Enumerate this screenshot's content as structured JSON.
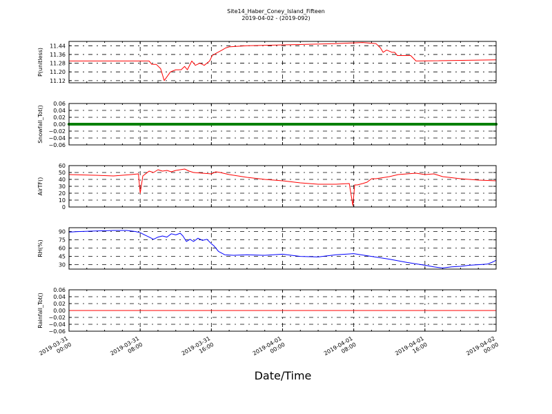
{
  "chart_data": {
    "type": "line",
    "title": "Site14_Haber_Coney_Island_Fifteen",
    "subtitle": "2019-04-02 - (2019-092)",
    "xlabel": "Date/Time",
    "x_tick_labels": [
      [
        "2019-03-31",
        "00:00"
      ],
      [
        "2019-03-31",
        "08:00"
      ],
      [
        "2019-03-31",
        "16:00"
      ],
      [
        "2019-04-01",
        "00:00"
      ],
      [
        "2019-04-01",
        "08:00"
      ],
      [
        "2019-04-01",
        "16:00"
      ],
      [
        "2019-04-02",
        "00:00"
      ]
    ],
    "xlim_hours": [
      0,
      48
    ],
    "grid": true,
    "panels": [
      {
        "ylabel": "P(unitless)",
        "color": "#ff0000",
        "ylim": [
          11.1,
          11.48
        ],
        "yticks": [
          11.12,
          11.2,
          11.28,
          11.36,
          11.44
        ],
        "ytick_labels": [
          "11.12",
          "11.20",
          "11.28",
          "11.36",
          "11.44"
        ],
        "x": [
          0,
          9,
          9.3,
          9.8,
          10.3,
          10.7,
          11.4,
          12,
          12.3,
          12.6,
          13,
          13.3,
          13.8,
          14.2,
          14.7,
          15.2,
          15.8,
          16.1,
          16.5,
          17.2,
          17.6,
          18,
          20,
          25,
          30,
          33,
          34.5,
          35,
          35.3,
          35.7,
          36.3,
          36.6,
          36.9,
          37.6,
          38,
          38.4,
          39,
          48
        ],
        "y": [
          11.3,
          11.3,
          11.27,
          11.27,
          11.23,
          11.12,
          11.2,
          11.22,
          11.22,
          11.22,
          11.25,
          11.22,
          11.3,
          11.26,
          11.28,
          11.26,
          11.3,
          11.35,
          11.37,
          11.4,
          11.42,
          11.43,
          11.44,
          11.45,
          11.46,
          11.47,
          11.46,
          11.42,
          11.38,
          11.4,
          11.38,
          11.38,
          11.35,
          11.35,
          11.35,
          11.35,
          11.3,
          11.31
        ]
      },
      {
        "ylabel": "Snowfall_Tot()",
        "color": "#008000",
        "marker": "dot",
        "ylim": [
          -0.06,
          0.06
        ],
        "yticks": [
          -0.06,
          -0.04,
          -0.02,
          0.0,
          0.02,
          0.04,
          0.06
        ],
        "ytick_labels": [
          "−0.06",
          "−0.04",
          "−0.02",
          "0.00",
          "0.02",
          "0.04",
          "0.06"
        ],
        "x": [
          0,
          48
        ],
        "y": [
          0,
          0
        ]
      },
      {
        "ylabel": "AirTF()",
        "color": "#ff0000",
        "ylim": [
          0,
          60
        ],
        "yticks": [
          0,
          10,
          20,
          30,
          40,
          50,
          60
        ],
        "ytick_labels": [
          "0",
          "10",
          "20",
          "30",
          "40",
          "50",
          "60"
        ],
        "x": [
          0,
          3,
          5,
          7,
          7.8,
          8,
          8.3,
          9,
          9.5,
          10,
          10.5,
          11,
          11.5,
          12,
          12.5,
          13,
          13.5,
          14,
          15,
          16,
          16.5,
          17,
          18,
          20,
          22,
          24,
          26,
          28,
          30,
          31.5,
          31.9,
          32.1,
          32.4,
          33,
          33.5,
          34,
          34.5,
          35,
          36,
          37,
          38,
          39,
          40,
          41,
          41.5,
          42,
          44,
          46,
          48
        ],
        "y": [
          47,
          46,
          45,
          47,
          48,
          20,
          45,
          52,
          50,
          54,
          52,
          53,
          51,
          53,
          54,
          55,
          52,
          50,
          49,
          48,
          51,
          50,
          47,
          43,
          40,
          38,
          35,
          33,
          33,
          34,
          2,
          32,
          32,
          34,
          36,
          41,
          41,
          42,
          44,
          47,
          48,
          49,
          47,
          48,
          46,
          44,
          41,
          39,
          38
        ]
      },
      {
        "ylabel": "RH(%)",
        "color": "#0000ff",
        "ylim": [
          22,
          97
        ],
        "yticks": [
          30,
          45,
          60,
          75,
          90
        ],
        "ytick_labels": [
          "30",
          "45",
          "60",
          "75",
          "90"
        ],
        "x": [
          0,
          1,
          3,
          5,
          6.5,
          7.5,
          8,
          8.5,
          9,
          9.5,
          10,
          10.5,
          11,
          11.5,
          12,
          12.5,
          12.8,
          13.2,
          13.6,
          14,
          14.5,
          15,
          15.5,
          16,
          16.3,
          16.8,
          17.5,
          18.5,
          20,
          22,
          24,
          25,
          26,
          28,
          30,
          32,
          34,
          36,
          38,
          40,
          41,
          42,
          43,
          44,
          45,
          46,
          47,
          47.5,
          48
        ],
        "y": [
          89,
          90,
          91,
          92,
          92,
          90,
          88,
          84,
          80,
          76,
          80,
          82,
          80,
          86,
          84,
          87,
          82,
          72,
          76,
          72,
          78,
          74,
          76,
          68,
          64,
          54,
          48,
          47,
          48,
          47,
          49,
          47,
          45,
          44,
          48,
          50,
          45,
          40,
          34,
          29,
          26,
          24,
          26,
          27,
          29,
          30,
          31,
          34,
          38
        ]
      },
      {
        "ylabel": "Rainfall_Tot()",
        "color": "#ff0000",
        "ylim": [
          -0.06,
          0.06
        ],
        "yticks": [
          -0.06,
          -0.04,
          -0.02,
          0.0,
          0.02,
          0.04,
          0.06
        ],
        "ytick_labels": [
          "−0.06",
          "−0.04",
          "−0.02",
          "0.00",
          "0.02",
          "0.04",
          "0.06"
        ],
        "x": [
          0,
          48
        ],
        "y": [
          0,
          0
        ]
      }
    ]
  }
}
